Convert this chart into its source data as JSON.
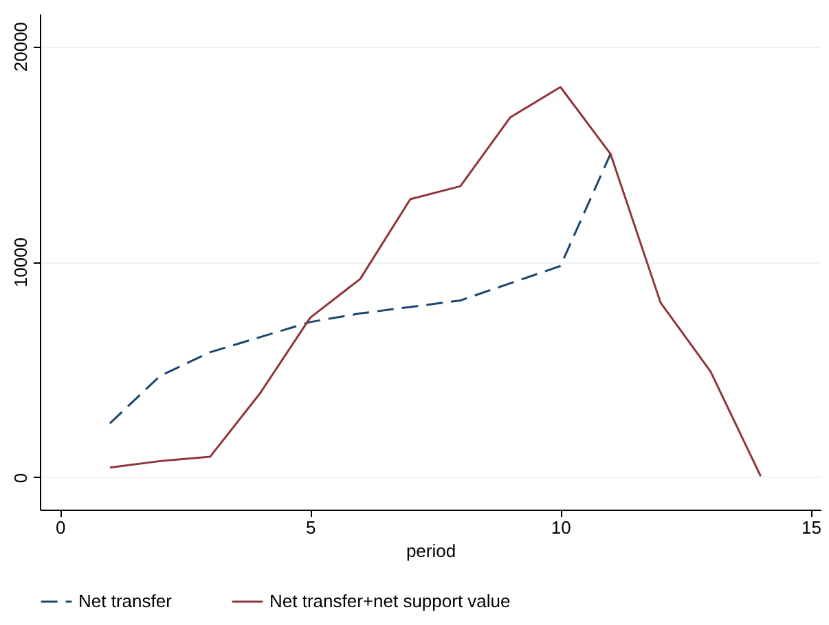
{
  "chart_data": {
    "type": "line",
    "xlabel": "period",
    "x": [
      1,
      2,
      3,
      4,
      5,
      6,
      7,
      8,
      9,
      10,
      11,
      12,
      13,
      14
    ],
    "series": [
      {
        "name": "Net transfer",
        "color": "#1a476f",
        "line_style": "dashed",
        "values": [
          2500,
          4700,
          5800,
          6500,
          7200,
          7600,
          7900,
          8200,
          9000,
          9800,
          15000,
          null,
          null,
          null
        ]
      },
      {
        "name": "Net transfer+net support value",
        "color": "#90353b",
        "line_style": "solid",
        "values": [
          450,
          750,
          950,
          3900,
          7400,
          9200,
          12900,
          13500,
          16700,
          18100,
          15000,
          8100,
          4900,
          50
        ]
      }
    ],
    "xlim": [
      -0.4,
      15.2
    ],
    "xticks": [
      0,
      5,
      10,
      15
    ],
    "ylim": [
      -1500,
      21500
    ],
    "yticks": [
      0,
      10000,
      20000
    ],
    "grid": "y",
    "legend": "bottom",
    "marker": "none"
  }
}
